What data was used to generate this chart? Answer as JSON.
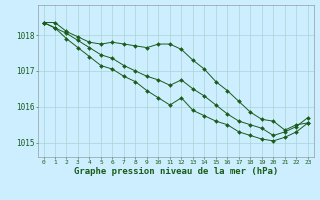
{
  "title": "Graphe pression niveau de la mer (hPa)",
  "background_color": "#cceeff",
  "grid_color": "#aad4d4",
  "line_color": "#1a5c1a",
  "marker_color": "#1a5c1a",
  "x_hours": [
    0,
    1,
    2,
    3,
    4,
    5,
    6,
    7,
    8,
    9,
    10,
    11,
    12,
    13,
    14,
    15,
    16,
    17,
    18,
    19,
    20,
    21,
    22,
    23
  ],
  "series1": [
    1018.35,
    1018.35,
    1018.1,
    1017.95,
    1017.8,
    1017.75,
    1017.8,
    1017.75,
    1017.7,
    1017.65,
    1017.75,
    1017.75,
    1017.6,
    1017.3,
    1017.05,
    1016.7,
    1016.45,
    1016.15,
    1015.85,
    1015.65,
    1015.6,
    1015.35,
    1015.5,
    1015.55
  ],
  "series2": [
    1018.35,
    1018.2,
    1018.05,
    1017.85,
    1017.65,
    1017.45,
    1017.35,
    1017.15,
    1017.0,
    1016.85,
    1016.75,
    1016.6,
    1016.75,
    1016.5,
    1016.3,
    1016.05,
    1015.8,
    1015.6,
    1015.5,
    1015.4,
    1015.2,
    1015.3,
    1015.45,
    1015.7
  ],
  "series3": [
    1018.35,
    1018.2,
    1017.9,
    1017.65,
    1017.4,
    1017.15,
    1017.05,
    1016.85,
    1016.7,
    1016.45,
    1016.25,
    1016.05,
    1016.25,
    1015.9,
    1015.75,
    1015.6,
    1015.5,
    1015.3,
    1015.2,
    1015.1,
    1015.05,
    1015.15,
    1015.3,
    1015.55
  ],
  "ylim_min": 1014.6,
  "ylim_max": 1018.85,
  "yticks": [
    1015,
    1016,
    1017,
    1018
  ],
  "title_fontsize": 6.5
}
